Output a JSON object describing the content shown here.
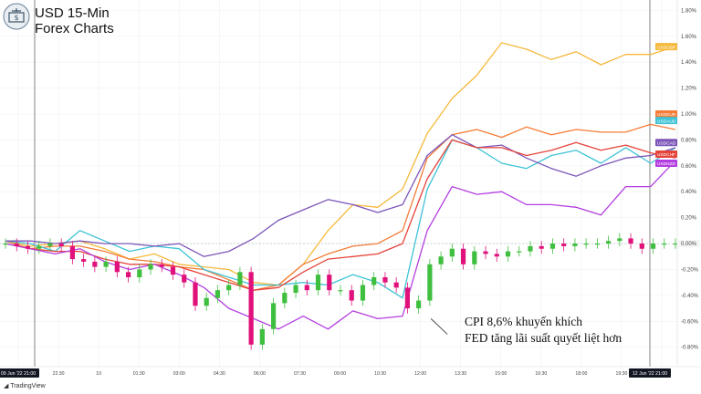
{
  "header": {
    "title_line1": "USD 15-Min",
    "title_line2": "Forex Charts"
  },
  "annotation": {
    "line1": "CPI 8,6% khuyến khích",
    "line2": "FED tăng lãi suất quyết liệt hơn"
  },
  "footer": {
    "brand": "TradingView"
  },
  "chart_data": {
    "type": "line",
    "ylim": [
      -0.95,
      1.88
    ],
    "y_ticks": [
      1.8,
      1.6,
      1.4,
      1.2,
      1.0,
      0.8,
      0.6,
      0.4,
      0.2,
      0.0,
      -0.2,
      -0.4,
      -0.6,
      -0.8
    ],
    "y_tick_labels": [
      "1.80%",
      "1.60%",
      "1.40%",
      "1.20%",
      "1.00%",
      "0.80%",
      "0.60%",
      "0.40%",
      "0.20%",
      "0.00%",
      "-0.20%",
      "-0.40%",
      "-0.60%",
      "-0.80%"
    ],
    "x_ticks": [
      "09 Jun '22  21:00",
      "22:30",
      "10",
      "01:30",
      "03:00",
      "04:30",
      "06:00",
      "07:30",
      "09:00",
      "10:30",
      "12:00",
      "13:30",
      "15:00",
      "16:30",
      "18:00",
      "19:30",
      "12 Jun '22  21:00"
    ],
    "grid": true,
    "series": [
      {
        "name": "USDGBP",
        "color": "#f5b93b",
        "values": [
          0.02,
          -0.02,
          0.0,
          0.02,
          -0.04,
          -0.12,
          -0.08,
          -0.16,
          -0.18,
          -0.2,
          -0.3,
          -0.32,
          -0.16,
          0.1,
          0.3,
          0.28,
          0.42,
          0.85,
          1.12,
          1.3,
          1.55,
          1.5,
          1.42,
          1.48,
          1.38,
          1.46,
          1.46,
          1.52
        ]
      },
      {
        "name": "USDEUR",
        "color": "#f57b35",
        "values": [
          0.02,
          -0.04,
          -0.02,
          -0.02,
          -0.06,
          -0.12,
          -0.14,
          -0.18,
          -0.2,
          -0.28,
          -0.36,
          -0.32,
          -0.16,
          -0.08,
          -0.02,
          0.0,
          0.1,
          0.66,
          0.84,
          0.88,
          0.82,
          0.9,
          0.84,
          0.88,
          0.86,
          0.86,
          0.92,
          0.88
        ]
      },
      {
        "name": "USDAUD",
        "color": "#3ec3d5",
        "values": [
          0.02,
          0.0,
          -0.06,
          0.1,
          0.02,
          -0.06,
          -0.02,
          -0.04,
          -0.2,
          -0.26,
          -0.32,
          -0.32,
          -0.3,
          -0.32,
          -0.24,
          -0.3,
          -0.42,
          0.42,
          0.8,
          0.74,
          0.62,
          0.58,
          0.68,
          0.72,
          0.62,
          0.74,
          0.62,
          0.74
        ]
      },
      {
        "name": "USDCAD",
        "color": "#7c55b8",
        "values": [
          0.02,
          0.02,
          0.0,
          0.02,
          0.0,
          0.0,
          -0.02,
          0.0,
          -0.1,
          -0.06,
          0.04,
          0.18,
          0.26,
          0.34,
          0.3,
          0.24,
          0.3,
          0.68,
          0.84,
          0.74,
          0.76,
          0.66,
          0.58,
          0.52,
          0.6,
          0.66,
          0.68,
          0.74
        ]
      },
      {
        "name": "USDCHF",
        "color": "#e5433a",
        "values": [
          0.0,
          -0.04,
          -0.06,
          -0.06,
          -0.12,
          -0.16,
          -0.16,
          -0.18,
          -0.24,
          -0.3,
          -0.36,
          -0.34,
          -0.22,
          -0.12,
          -0.1,
          -0.08,
          0.0,
          0.5,
          0.8,
          0.74,
          0.74,
          0.68,
          0.72,
          0.78,
          0.72,
          0.76,
          0.7,
          0.66
        ]
      },
      {
        "name": "USDNZD",
        "color": "#b33ee0",
        "values": [
          0.0,
          -0.04,
          -0.08,
          -0.04,
          -0.14,
          -0.2,
          -0.16,
          -0.24,
          -0.34,
          -0.5,
          -0.58,
          -0.66,
          -0.56,
          -0.66,
          -0.52,
          -0.58,
          -0.56,
          0.1,
          0.44,
          0.38,
          0.4,
          0.3,
          0.3,
          0.28,
          0.22,
          0.44,
          0.44,
          0.64
        ]
      }
    ],
    "candles_close": [
      0.0,
      -0.02,
      -0.04,
      -0.02,
      0.0,
      -0.02,
      -0.12,
      -0.14,
      -0.18,
      -0.14,
      -0.22,
      -0.26,
      -0.2,
      -0.16,
      -0.18,
      -0.24,
      -0.3,
      -0.48,
      -0.42,
      -0.36,
      -0.32,
      -0.22,
      -0.78,
      -0.66,
      -0.46,
      -0.38,
      -0.32,
      -0.36,
      -0.24,
      -0.36,
      -0.36,
      -0.44,
      -0.32,
      -0.26,
      -0.3,
      -0.34,
      -0.5,
      -0.44,
      -0.16,
      -0.1,
      -0.04,
      -0.16,
      -0.06,
      -0.08,
      -0.1,
      -0.06,
      -0.06,
      -0.02,
      -0.04,
      0.0,
      -0.02,
      0.0,
      0.0,
      0.0,
      0.02,
      0.04,
      0.0,
      -0.04,
      0.0,
      0.0,
      0.0
    ],
    "candle_colors": {
      "up": "#3fbf3f",
      "down": "#e0117a"
    },
    "value_tags": [
      {
        "label": "USDGBP",
        "y": 1.52
      },
      {
        "label": "USDEUR",
        "y": 1.0
      },
      {
        "label": "USDAUD",
        "y": 0.95
      },
      {
        "label": "USDCAD",
        "y": 0.78
      },
      {
        "label": "USDCHF",
        "y": 0.69
      },
      {
        "label": "USDNZD",
        "y": 0.62
      }
    ],
    "event_x_index": 17
  }
}
